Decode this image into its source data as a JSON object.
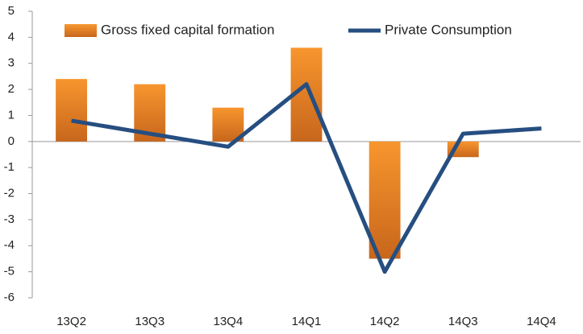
{
  "chart_data": {
    "type": "bar",
    "categories": [
      "13Q2",
      "13Q3",
      "13Q4",
      "14Q1",
      "14Q2",
      "14Q3",
      "14Q4"
    ],
    "series": [
      {
        "name": "Gross fixed capital formation",
        "type": "bar",
        "color": "#f0862a",
        "values": [
          2.4,
          2.2,
          1.3,
          3.6,
          -4.5,
          -0.6,
          0
        ]
      },
      {
        "name": "Private Consumption",
        "type": "line",
        "color": "#264e80",
        "values": [
          0.8,
          0.3,
          -0.2,
          2.2,
          -5.0,
          0.3,
          0.5
        ]
      }
    ],
    "ylim": [
      -6,
      5
    ],
    "yticks": [
      -6,
      -5,
      -4,
      -3,
      -2,
      -1,
      0,
      1,
      2,
      3,
      4,
      5
    ],
    "legend": "top"
  }
}
